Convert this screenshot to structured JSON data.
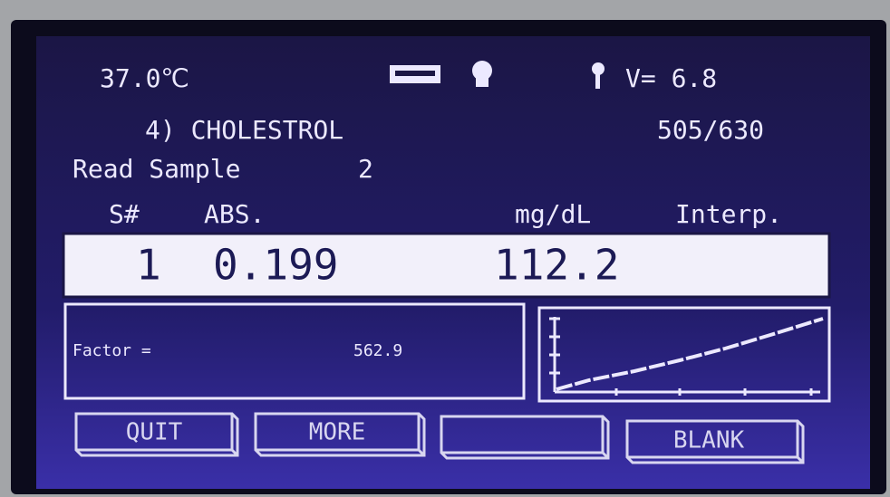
{
  "status": {
    "temperature": "37.0℃",
    "voltage": "V= 6.8"
  },
  "test": {
    "name": "4) CHOLESTROL",
    "wavelength": "505/630"
  },
  "read": {
    "label": "Read Sample",
    "number": "2"
  },
  "table": {
    "headers": [
      "S#",
      "ABS.",
      "mg/dL",
      "Interp."
    ],
    "rows": [
      [
        "1",
        "0.199",
        "112.2"
      ]
    ]
  },
  "factor": {
    "label": "Factor =",
    "value": "562.9"
  },
  "buttons": [
    "QUIT",
    "MORE",
    "BLANK"
  ]
}
